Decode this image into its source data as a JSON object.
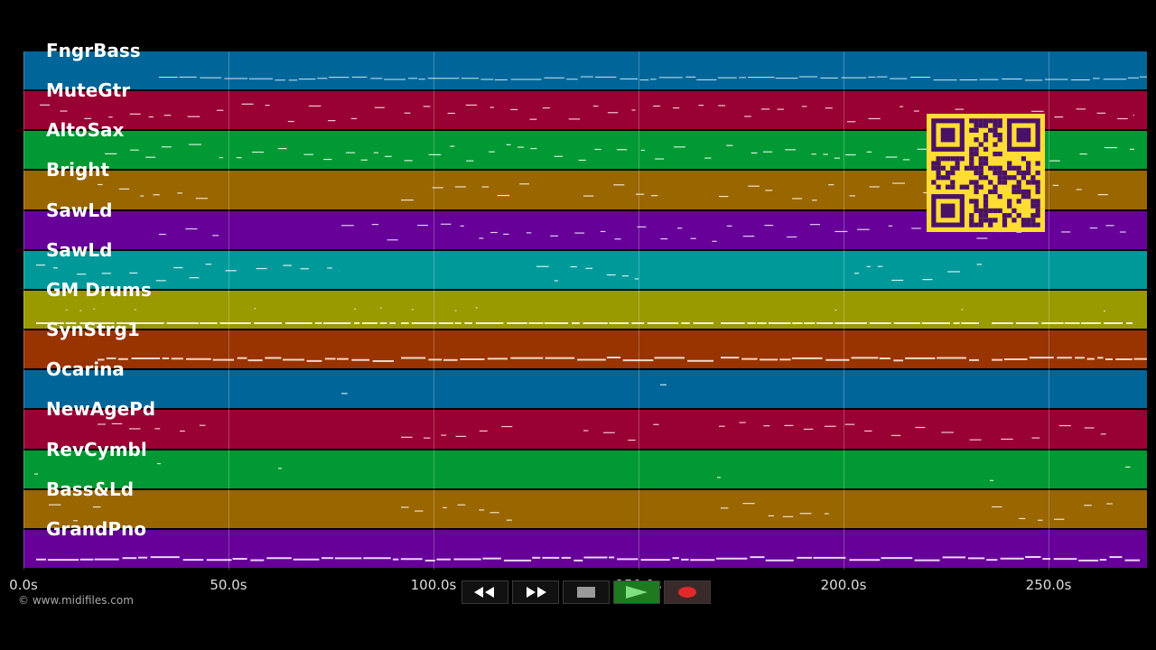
{
  "tracks": [
    {
      "name": "FngrBass",
      "color": "#006699",
      "note_color": "#cfe6f5",
      "pattern": "bass"
    },
    {
      "name": "MuteGtr",
      "color": "#990033",
      "note_color": "#f2c8d4",
      "pattern": "mute"
    },
    {
      "name": "AltoSax",
      "color": "#009933",
      "note_color": "#d2f2dc",
      "pattern": "sax"
    },
    {
      "name": "Bright",
      "color": "#996600",
      "note_color": "#f2e2c8",
      "pattern": "bright"
    },
    {
      "name": "SawLd",
      "color": "#660099",
      "note_color": "#e2ccf2",
      "pattern": "saw1"
    },
    {
      "name": "SawLd",
      "color": "#009999",
      "note_color": "#d0f2f2",
      "pattern": "saw2"
    },
    {
      "name": "GM Drums",
      "color": "#999900",
      "note_color": "#f2f2cc",
      "pattern": "drums"
    },
    {
      "name": "SynStrg1",
      "color": "#993300",
      "note_color": "#f2d8c8",
      "pattern": "strings"
    },
    {
      "name": "Ocarina",
      "color": "#006699",
      "note_color": "#cfe6f5",
      "pattern": "ocarina"
    },
    {
      "name": "NewAgePd",
      "color": "#990033",
      "note_color": "#f2c8d4",
      "pattern": "pad"
    },
    {
      "name": "RevCymbl",
      "color": "#009933",
      "note_color": "#d2f2dc",
      "pattern": "cymbal"
    },
    {
      "name": "Bass&Ld",
      "color": "#996600",
      "note_color": "#f2e2c8",
      "pattern": "bassld"
    },
    {
      "name": "GrandPno",
      "color": "#660099",
      "note_color": "#e8d6f5",
      "pattern": "piano"
    }
  ],
  "timeline": {
    "duration_seconds": 274,
    "ticks": [
      {
        "value": 0,
        "label": "0.0s"
      },
      {
        "value": 50,
        "label": "50.0s"
      },
      {
        "value": 100,
        "label": "100.0s"
      },
      {
        "value": 150,
        "label": "150.0s"
      },
      {
        "value": 200,
        "label": "200.0s"
      },
      {
        "value": 250,
        "label": "250.0s"
      }
    ]
  },
  "copyright": "© www.midifiles.com",
  "transport": {
    "rewind": "rewind-icon",
    "fast_forward": "fast-forward-icon",
    "stop": "stop-icon",
    "play": "play-icon",
    "record": "record-icon"
  },
  "colors": {
    "background": "#000000",
    "qr_background": "#ffdd33",
    "qr_foreground": "#4a1266"
  }
}
